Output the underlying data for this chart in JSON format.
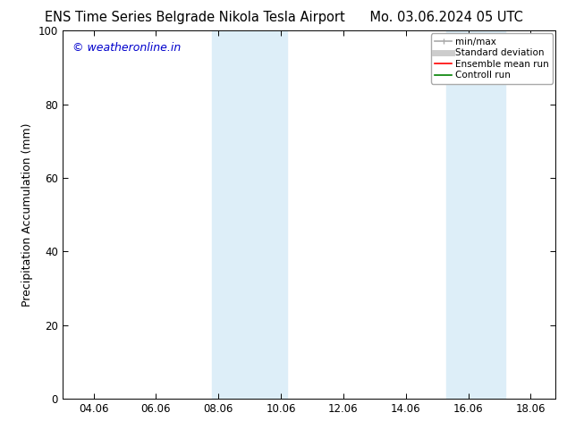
{
  "title_left": "ENS Time Series Belgrade Nikola Tesla Airport",
  "title_right": "Mo. 03.06.2024 05 UTC",
  "ylabel": "Precipitation Accumulation (mm)",
  "watermark": "© weatheronline.in",
  "watermark_color": "#0000cc",
  "xlim_start": 3.0,
  "xlim_end": 18.8,
  "ylim": [
    0,
    100
  ],
  "xticks": [
    4,
    6,
    8,
    10,
    12,
    14,
    16,
    18
  ],
  "xtick_labels": [
    "04.06",
    "06.06",
    "08.06",
    "10.06",
    "12.06",
    "14.06",
    "16.06",
    "18.06"
  ],
  "yticks": [
    0,
    20,
    40,
    60,
    80,
    100
  ],
  "shaded_bands": [
    {
      "x_start": 7.8,
      "x_end": 10.2,
      "color": "#ddeef8",
      "alpha": 1.0
    },
    {
      "x_start": 15.3,
      "x_end": 17.2,
      "color": "#ddeef8",
      "alpha": 1.0
    }
  ],
  "legend_items": [
    {
      "label": "min/max",
      "color": "#aaaaaa",
      "lw": 1.2,
      "style": "line_with_caps"
    },
    {
      "label": "Standard deviation",
      "color": "#cccccc",
      "lw": 5,
      "style": "line"
    },
    {
      "label": "Ensemble mean run",
      "color": "#ff0000",
      "lw": 1.2,
      "style": "line"
    },
    {
      "label": "Controll run",
      "color": "#008000",
      "lw": 1.2,
      "style": "line"
    }
  ],
  "background_color": "#ffffff",
  "plot_bg_color": "#ffffff",
  "title_fontsize": 10.5,
  "ylabel_fontsize": 9,
  "tick_fontsize": 8.5,
  "watermark_fontsize": 9,
  "legend_fontsize": 7.5
}
